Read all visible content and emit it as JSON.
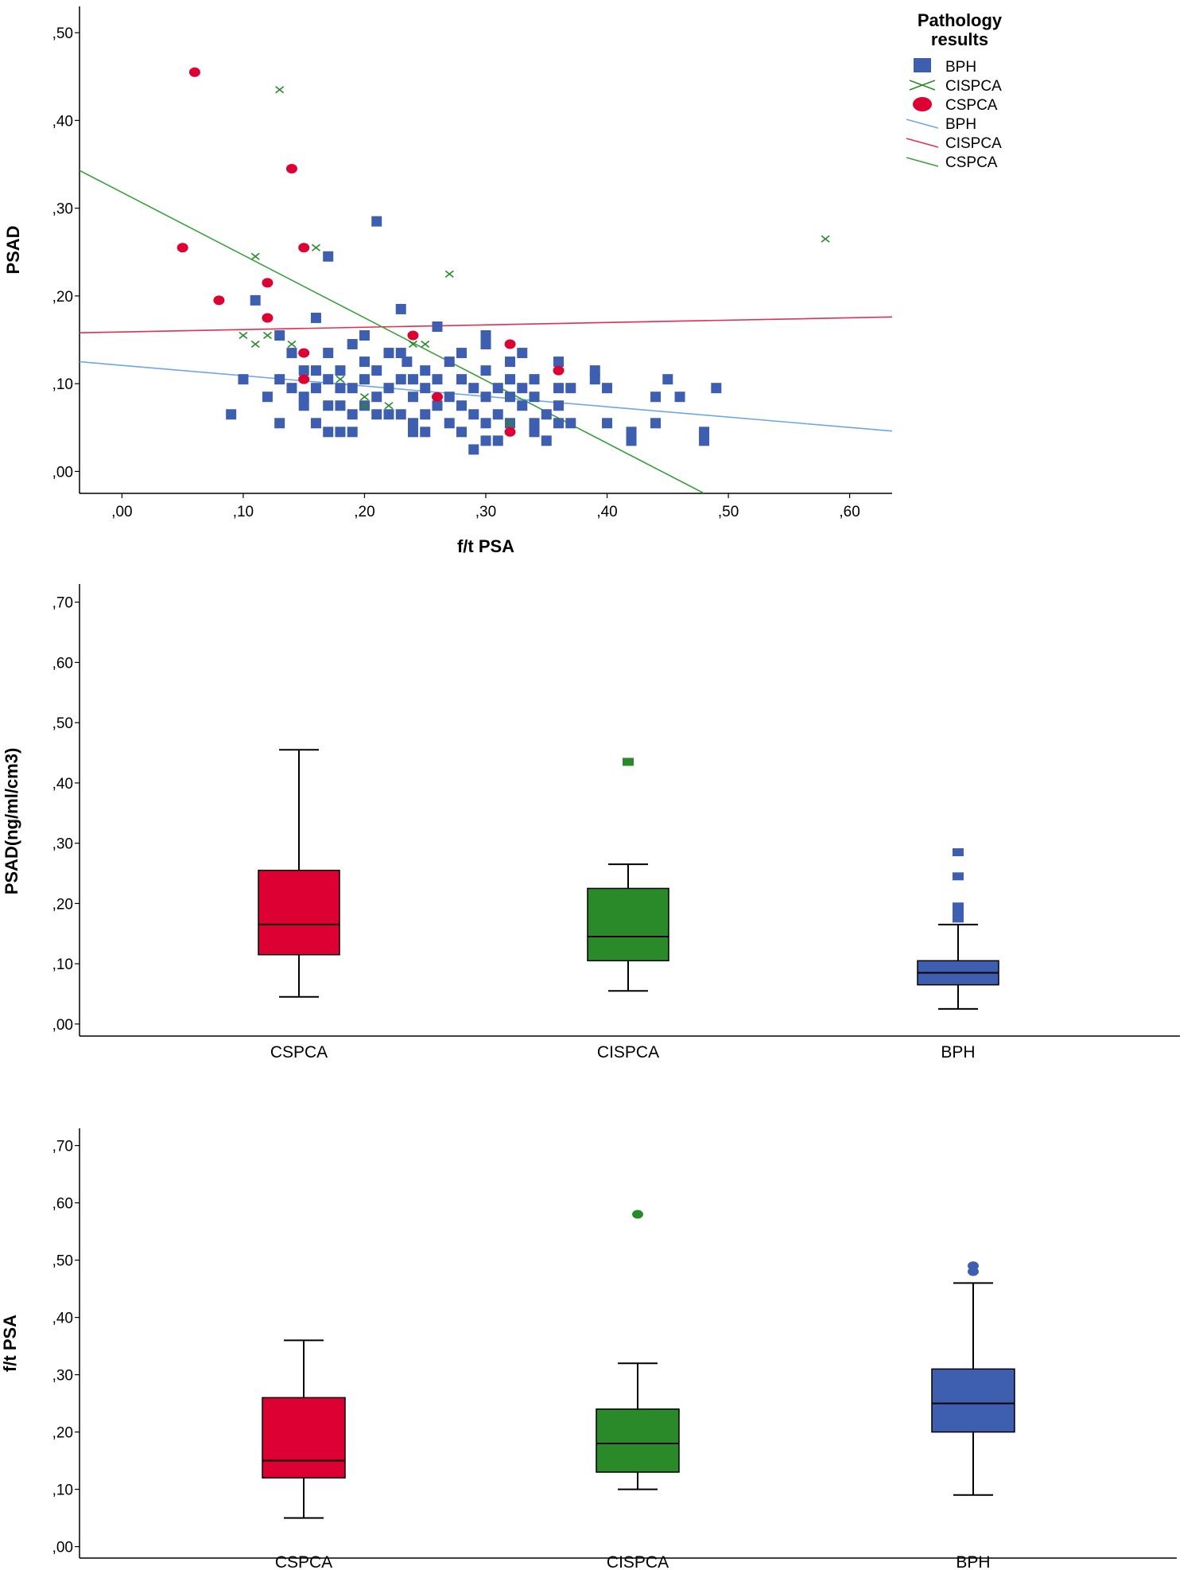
{
  "colors": {
    "cspca": "#dc0033",
    "cispca": "#2a8a2a",
    "bph": "#3e5fb0",
    "fit_bph": "#6ea6e8",
    "fit_cispca": "#e03050",
    "fit_cspca": "#3aa03a"
  },
  "chart_data": [
    {
      "type": "scatter",
      "title": "",
      "xlabel": "f/t PSA",
      "ylabel": "PSAD",
      "xlim": [
        -0.035,
        0.635
      ],
      "ylim": [
        -0.025,
        0.53
      ],
      "x_ticks": [
        ",00",
        ",10",
        ",20",
        ",30",
        ",40",
        ",50",
        ",60"
      ],
      "x_tick_values": [
        0,
        0.1,
        0.2,
        0.3,
        0.4,
        0.5,
        0.6
      ],
      "y_ticks": [
        ",00",
        ",10",
        ",20",
        ",30",
        ",40",
        ",50"
      ],
      "y_tick_values": [
        0,
        0.1,
        0.2,
        0.3,
        0.4,
        0.5
      ],
      "legend": {
        "title_line1": "Pathology",
        "title_line2": "results",
        "placement": "top-right",
        "entries": [
          {
            "label": "BPH",
            "kind": "marker-square",
            "color": "#3e5fb0"
          },
          {
            "label": "CISPCA",
            "kind": "marker-cross",
            "color": "#2a8a2a"
          },
          {
            "label": "CSPCA",
            "kind": "marker-circle",
            "color": "#dc0033"
          },
          {
            "label": "BPH",
            "kind": "line",
            "color": "#6ea6e8"
          },
          {
            "label": "CISPCA",
            "kind": "line",
            "color": "#e03050"
          },
          {
            "label": "CSPCA",
            "kind": "line",
            "color": "#3aa03a"
          }
        ]
      },
      "series": [
        {
          "name": "BPH",
          "marker": "square",
          "color": "#3e5fb0",
          "points": [
            [
              0.09,
              0.065
            ],
            [
              0.1,
              0.105
            ],
            [
              0.11,
              0.195
            ],
            [
              0.12,
              0.085
            ],
            [
              0.13,
              0.055
            ],
            [
              0.13,
              0.105
            ],
            [
              0.13,
              0.155
            ],
            [
              0.14,
              0.095
            ],
            [
              0.14,
              0.135
            ],
            [
              0.15,
              0.085
            ],
            [
              0.15,
              0.115
            ],
            [
              0.15,
              0.075
            ],
            [
              0.16,
              0.055
            ],
            [
              0.16,
              0.095
            ],
            [
              0.16,
              0.115
            ],
            [
              0.16,
              0.175
            ],
            [
              0.17,
              0.045
            ],
            [
              0.17,
              0.075
            ],
            [
              0.17,
              0.105
            ],
            [
              0.17,
              0.135
            ],
            [
              0.17,
              0.245
            ],
            [
              0.18,
              0.045
            ],
            [
              0.18,
              0.075
            ],
            [
              0.18,
              0.095
            ],
            [
              0.18,
              0.115
            ],
            [
              0.19,
              0.045
            ],
            [
              0.19,
              0.065
            ],
            [
              0.19,
              0.095
            ],
            [
              0.19,
              0.145
            ],
            [
              0.2,
              0.075
            ],
            [
              0.2,
              0.105
            ],
            [
              0.2,
              0.125
            ],
            [
              0.2,
              0.155
            ],
            [
              0.21,
              0.065
            ],
            [
              0.21,
              0.085
            ],
            [
              0.21,
              0.115
            ],
            [
              0.21,
              0.285
            ],
            [
              0.22,
              0.065
            ],
            [
              0.22,
              0.095
            ],
            [
              0.22,
              0.135
            ],
            [
              0.23,
              0.065
            ],
            [
              0.23,
              0.105
            ],
            [
              0.23,
              0.135
            ],
            [
              0.23,
              0.185
            ],
            [
              0.235,
              0.125
            ],
            [
              0.24,
              0.045
            ],
            [
              0.24,
              0.055
            ],
            [
              0.24,
              0.085
            ],
            [
              0.24,
              0.105
            ],
            [
              0.25,
              0.045
            ],
            [
              0.25,
              0.065
            ],
            [
              0.25,
              0.095
            ],
            [
              0.25,
              0.115
            ],
            [
              0.26,
              0.075
            ],
            [
              0.26,
              0.105
            ],
            [
              0.26,
              0.165
            ],
            [
              0.27,
              0.055
            ],
            [
              0.27,
              0.085
            ],
            [
              0.27,
              0.125
            ],
            [
              0.28,
              0.045
            ],
            [
              0.28,
              0.075
            ],
            [
              0.28,
              0.105
            ],
            [
              0.28,
              0.135
            ],
            [
              0.29,
              0.025
            ],
            [
              0.29,
              0.065
            ],
            [
              0.29,
              0.095
            ],
            [
              0.3,
              0.035
            ],
            [
              0.3,
              0.055
            ],
            [
              0.3,
              0.085
            ],
            [
              0.3,
              0.115
            ],
            [
              0.3,
              0.145
            ],
            [
              0.3,
              0.155
            ],
            [
              0.31,
              0.035
            ],
            [
              0.31,
              0.065
            ],
            [
              0.31,
              0.095
            ],
            [
              0.32,
              0.055
            ],
            [
              0.32,
              0.085
            ],
            [
              0.32,
              0.105
            ],
            [
              0.32,
              0.125
            ],
            [
              0.33,
              0.075
            ],
            [
              0.33,
              0.095
            ],
            [
              0.33,
              0.135
            ],
            [
              0.34,
              0.045
            ],
            [
              0.34,
              0.055
            ],
            [
              0.34,
              0.085
            ],
            [
              0.34,
              0.105
            ],
            [
              0.35,
              0.035
            ],
            [
              0.35,
              0.065
            ],
            [
              0.36,
              0.055
            ],
            [
              0.36,
              0.075
            ],
            [
              0.36,
              0.095
            ],
            [
              0.36,
              0.125
            ],
            [
              0.37,
              0.055
            ],
            [
              0.37,
              0.095
            ],
            [
              0.39,
              0.105
            ],
            [
              0.39,
              0.115
            ],
            [
              0.4,
              0.055
            ],
            [
              0.4,
              0.095
            ],
            [
              0.42,
              0.035
            ],
            [
              0.42,
              0.045
            ],
            [
              0.44,
              0.055
            ],
            [
              0.44,
              0.085
            ],
            [
              0.45,
              0.105
            ],
            [
              0.46,
              0.085
            ],
            [
              0.48,
              0.035
            ],
            [
              0.48,
              0.045
            ],
            [
              0.49,
              0.095
            ]
          ]
        },
        {
          "name": "CISPCA",
          "marker": "cross",
          "color": "#2a8a2a",
          "points": [
            [
              0.13,
              0.435
            ],
            [
              0.11,
              0.245
            ],
            [
              0.16,
              0.255
            ],
            [
              0.27,
              0.225
            ],
            [
              0.58,
              0.265
            ],
            [
              0.1,
              0.155
            ],
            [
              0.11,
              0.145
            ],
            [
              0.12,
              0.155
            ],
            [
              0.14,
              0.145
            ],
            [
              0.18,
              0.105
            ],
            [
              0.2,
              0.085
            ],
            [
              0.2,
              0.075
            ],
            [
              0.22,
              0.075
            ],
            [
              0.24,
              0.145
            ],
            [
              0.25,
              0.145
            ],
            [
              0.32,
              0.055
            ]
          ]
        },
        {
          "name": "CSPCA",
          "marker": "circle",
          "color": "#dc0033",
          "points": [
            [
              0.06,
              0.455
            ],
            [
              0.14,
              0.345
            ],
            [
              0.05,
              0.255
            ],
            [
              0.15,
              0.255
            ],
            [
              0.08,
              0.195
            ],
            [
              0.12,
              0.215
            ],
            [
              0.12,
              0.175
            ],
            [
              0.15,
              0.135
            ],
            [
              0.15,
              0.105
            ],
            [
              0.24,
              0.155
            ],
            [
              0.26,
              0.085
            ],
            [
              0.32,
              0.145
            ],
            [
              0.32,
              0.045
            ],
            [
              0.36,
              0.115
            ]
          ]
        }
      ],
      "fit_lines": [
        {
          "name": "BPH",
          "color": "#6ea6e8",
          "from": [
            -0.035,
            0.125
          ],
          "to": [
            0.635,
            0.046
          ]
        },
        {
          "name": "CISPCA",
          "color": "#e03050",
          "from": [
            -0.035,
            0.158
          ],
          "to": [
            0.635,
            0.176
          ]
        },
        {
          "name": "CSPCA",
          "color": "#3aa03a",
          "from": [
            -0.035,
            0.343
          ],
          "to": [
            0.48,
            -0.025
          ]
        }
      ]
    },
    {
      "type": "box",
      "title": "",
      "xlabel": "",
      "ylabel": "PSAD(ng/ml/cm3)",
      "ylim": [
        -0.02,
        0.73
      ],
      "y_ticks": [
        ",00",
        ",10",
        ",20",
        ",30",
        ",40",
        ",50",
        ",60",
        ",70"
      ],
      "y_tick_values": [
        0,
        0.1,
        0.2,
        0.3,
        0.4,
        0.5,
        0.6,
        0.7
      ],
      "categories": [
        "CSPCA",
        "CISPCA",
        "BPH"
      ],
      "boxes": [
        {
          "category": "CSPCA",
          "color": "#dc0033",
          "min": 0.045,
          "q1": 0.115,
          "median": 0.165,
          "q3": 0.255,
          "max": 0.455,
          "outliers": [],
          "outlier_marker": "square"
        },
        {
          "category": "CISPCA",
          "color": "#2a8a2a",
          "min": 0.055,
          "q1": 0.105,
          "median": 0.145,
          "q3": 0.225,
          "max": 0.265,
          "outliers": [
            0.435
          ],
          "outlier_marker": "square"
        },
        {
          "category": "BPH",
          "color": "#3e5fb0",
          "min": 0.025,
          "q1": 0.065,
          "median": 0.085,
          "q3": 0.105,
          "max": 0.165,
          "outliers": [
            0.175,
            0.185,
            0.195,
            0.245,
            0.285
          ],
          "outlier_marker": "square"
        }
      ]
    },
    {
      "type": "box",
      "title": "",
      "xlabel": "",
      "ylabel": "f/t PSA",
      "ylim": [
        -0.02,
        0.73
      ],
      "y_ticks": [
        ",00",
        ",10",
        ",20",
        ",30",
        ",40",
        ",50",
        ",60",
        ",70"
      ],
      "y_tick_values": [
        0,
        0.1,
        0.2,
        0.3,
        0.4,
        0.5,
        0.6,
        0.7
      ],
      "categories": [
        "CSPCA",
        "CISPCA",
        "BPH"
      ],
      "boxes": [
        {
          "category": "CSPCA",
          "color": "#dc0033",
          "min": 0.05,
          "q1": 0.12,
          "median": 0.15,
          "q3": 0.26,
          "max": 0.36,
          "outliers": [],
          "outlier_marker": "circle"
        },
        {
          "category": "CISPCA",
          "color": "#2a8a2a",
          "min": 0.1,
          "q1": 0.13,
          "median": 0.18,
          "q3": 0.24,
          "max": 0.32,
          "outliers": [
            0.58
          ],
          "outlier_marker": "circle"
        },
        {
          "category": "BPH",
          "color": "#3e5fb0",
          "min": 0.09,
          "q1": 0.2,
          "median": 0.25,
          "q3": 0.31,
          "max": 0.46,
          "outliers": [
            0.48,
            0.49
          ],
          "outlier_marker": "circle"
        }
      ]
    }
  ]
}
